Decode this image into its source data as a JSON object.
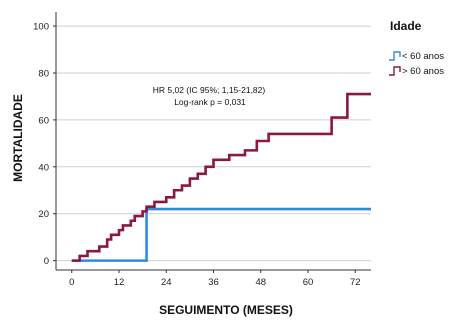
{
  "chart_data": {
    "type": "line",
    "step": true,
    "xlabel": "SEGUIMENTO (MESES)",
    "ylabel": "MORTALIDADE",
    "xlim": [
      -4,
      76
    ],
    "ylim": [
      -4,
      106
    ],
    "xticks": [
      0,
      12,
      24,
      36,
      48,
      60,
      72
    ],
    "yticks": [
      0,
      20,
      40,
      60,
      80,
      100
    ],
    "grid": "horizontal",
    "annotations": [
      "HR 5,02 (IC 95%; 1,15-21,82)",
      "Log-rank p = 0,031"
    ],
    "legend": {
      "title": "Idade",
      "position": "right"
    },
    "series": [
      {
        "name": "< 60 anos",
        "color": "#2e8be0",
        "x": [
          0,
          19,
          19,
          76
        ],
        "y": [
          0,
          0,
          22,
          22
        ]
      },
      {
        "name": "> 60 anos",
        "color": "#8c1840",
        "x": [
          0,
          2,
          4,
          7,
          9,
          10,
          12,
          13,
          15,
          16,
          18,
          19,
          21,
          24,
          26,
          28,
          30,
          32,
          34,
          36,
          40,
          44,
          47,
          50,
          66,
          70,
          76
        ],
        "y": [
          0,
          2,
          4,
          6,
          9,
          11,
          13,
          15,
          17,
          19,
          21,
          23,
          25,
          27,
          30,
          32,
          35,
          37,
          40,
          43,
          45,
          47,
          51,
          54,
          61,
          71,
          71
        ]
      }
    ]
  }
}
